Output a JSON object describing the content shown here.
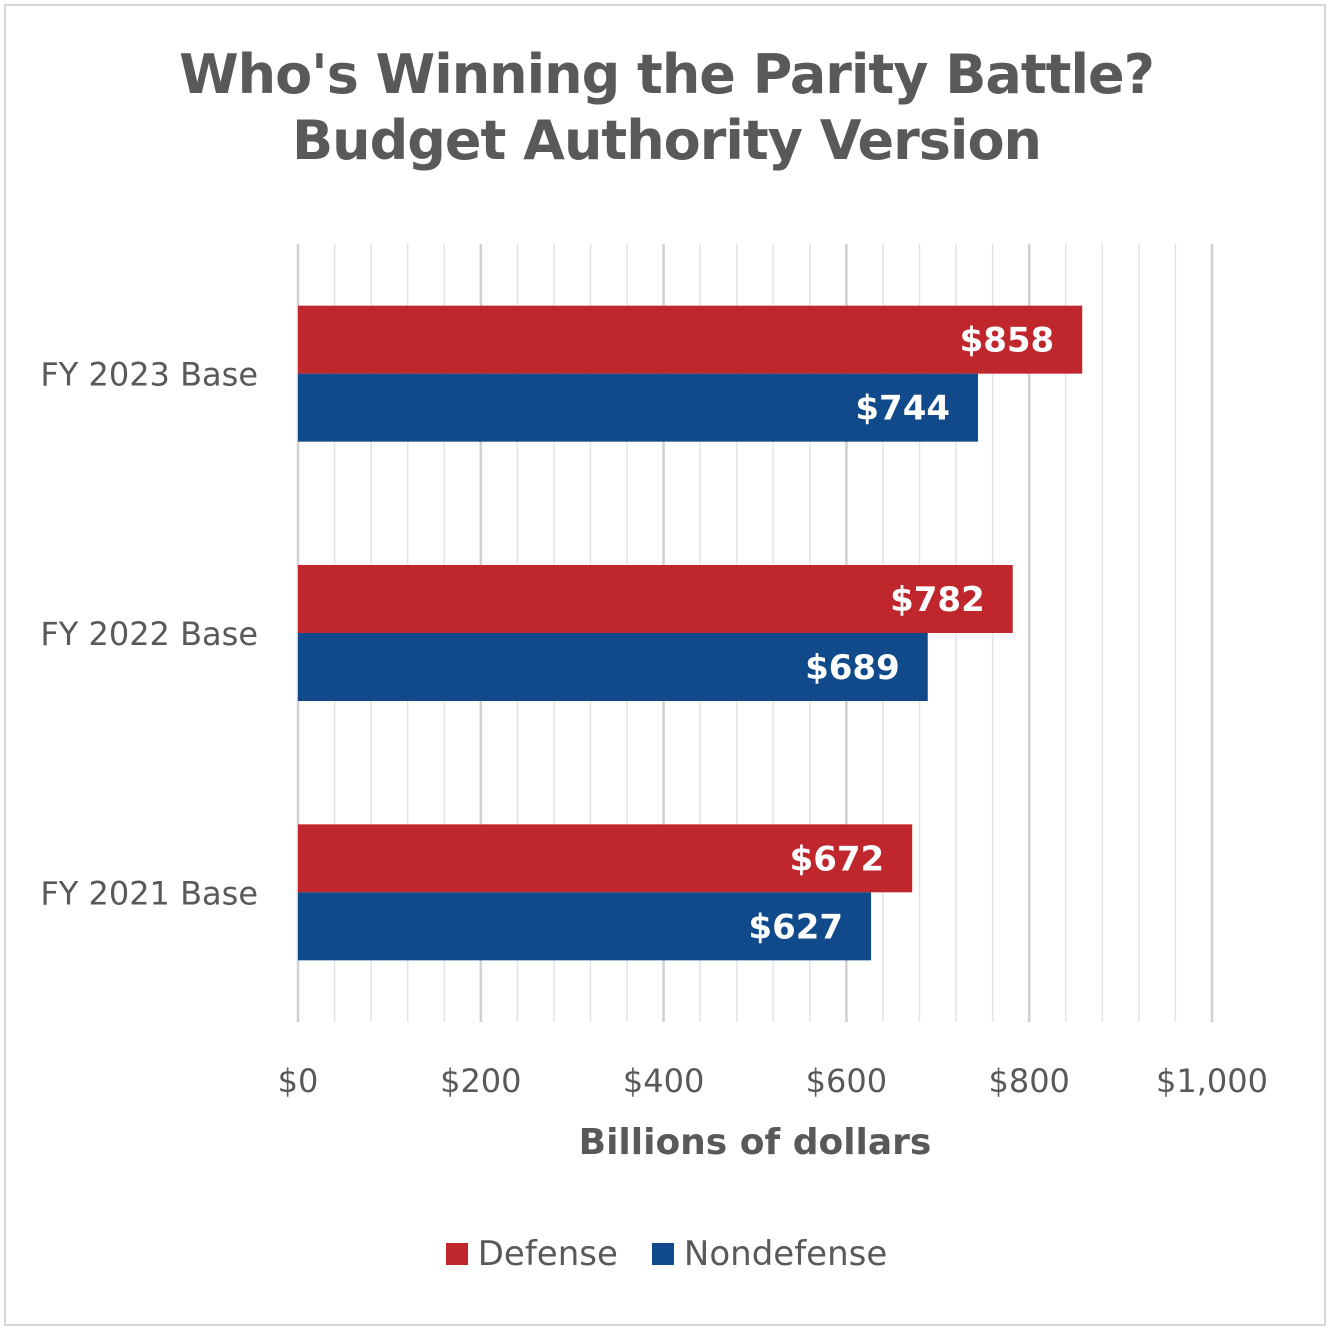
{
  "chart_data": {
    "type": "bar",
    "orientation": "horizontal",
    "title": "Who's Winning the Parity Battle?",
    "subtitle": "Budget Authority Version",
    "categories": [
      "FY 2023 Base",
      "FY 2022 Base",
      "FY 2021 Base"
    ],
    "series": [
      {
        "name": "Defense",
        "color": "#c0272d",
        "values": [
          858,
          782,
          672
        ],
        "labels": [
          "$858",
          "$782",
          "$672"
        ]
      },
      {
        "name": "Nondefense",
        "color": "#104a8a",
        "values": [
          744,
          689,
          627
        ],
        "labels": [
          "$744",
          "$689",
          "$627"
        ]
      }
    ],
    "xlabel": "Billions of dollars",
    "ylabel": "",
    "xlim": [
      0,
      1000
    ],
    "x_ticks": [
      0,
      200,
      400,
      600,
      800,
      1000
    ],
    "x_tick_labels": [
      "$0",
      "$200",
      "$400",
      "$600",
      "$800",
      "$1,000"
    ],
    "grid": true,
    "legend_position": "bottom"
  }
}
